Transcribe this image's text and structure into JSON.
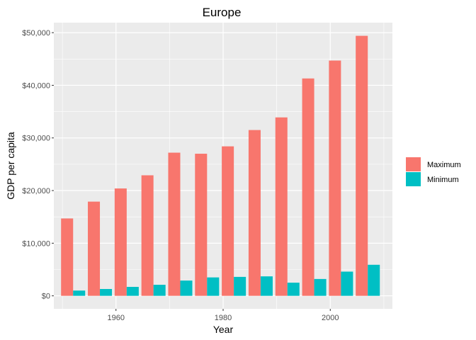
{
  "chart_data": {
    "type": "bar",
    "title": "Europe",
    "xlabel": "Year",
    "ylabel": "GDP per capita",
    "xlim": [
      1948.4,
      2011.6
    ],
    "ylim": [
      -2470,
      51900
    ],
    "x_ticks": [
      1960,
      1980,
      2000
    ],
    "x_tick_labels": [
      "1960",
      "1980",
      "2000"
    ],
    "y_ticks": [
      0,
      10000,
      20000,
      30000,
      40000,
      50000
    ],
    "y_tick_labels": [
      "$0",
      "$10,000",
      "$20,000",
      "$30,000",
      "$40,000",
      "$50,000"
    ],
    "grid": true,
    "legend_position": "right",
    "x": [
      1952,
      1957,
      1962,
      1967,
      1972,
      1977,
      1982,
      1987,
      1992,
      1997,
      2002,
      2007
    ],
    "series": [
      {
        "name": "Maximum",
        "color": "#F8766D",
        "values": [
          14700,
          17900,
          20400,
          22900,
          27200,
          27000,
          28400,
          31500,
          33900,
          41300,
          44700,
          49400
        ]
      },
      {
        "name": "Minimum",
        "color": "#00BFC4",
        "values": [
          1000,
          1300,
          1700,
          2100,
          2900,
          3500,
          3600,
          3700,
          2500,
          3200,
          4600,
          5900
        ]
      }
    ]
  }
}
